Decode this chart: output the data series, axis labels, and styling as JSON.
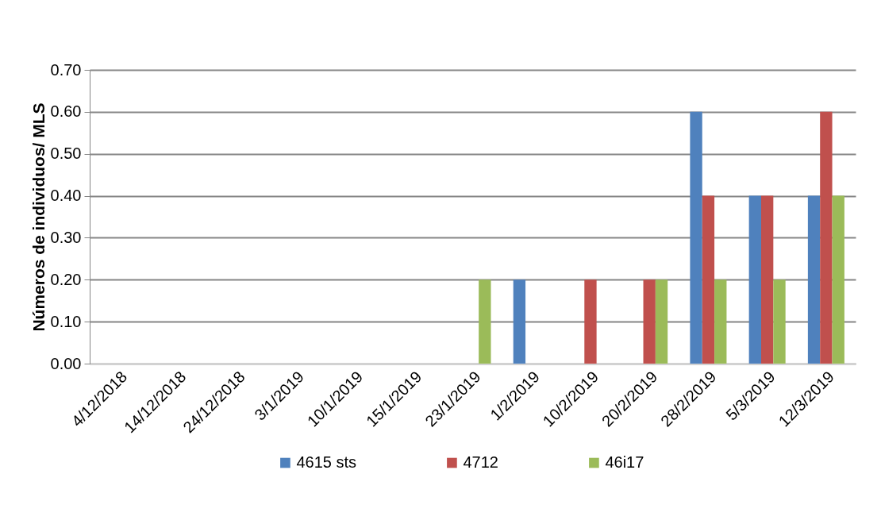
{
  "chart_data": {
    "type": "bar",
    "ylabel": "Números de individuos/ MLS",
    "categories": [
      "4/12/2018",
      "14/12/2018",
      "24/12/2018",
      "3/1/2019",
      "10/1/2019",
      "15/1/2019",
      "23/1/2019",
      "1/2/2019",
      "10/2/2019",
      "20/2/2019",
      "28/2/2019",
      "5/3/2019",
      "12/3/2019"
    ],
    "series": [
      {
        "name": "4615 sts",
        "color": "#4f81bd",
        "values": [
          0,
          0,
          0,
          0,
          0,
          0,
          0,
          0.2,
          0,
          0,
          0.6,
          0.4,
          0.4
        ]
      },
      {
        "name": "4712",
        "color": "#c0504d",
        "values": [
          0,
          0,
          0,
          0,
          0,
          0,
          0,
          0,
          0.2,
          0.2,
          0.4,
          0.4,
          0.6
        ]
      },
      {
        "name": "46i17",
        "color": "#9bbb59",
        "values": [
          0,
          0,
          0,
          0,
          0,
          0,
          0.2,
          0,
          0,
          0.2,
          0.2,
          0.2,
          0.4
        ]
      }
    ],
    "ylim": [
      0,
      0.7
    ],
    "yticks": [
      {
        "value": 0,
        "label": "0.00"
      },
      {
        "value": 0.1,
        "label": "0.10"
      },
      {
        "value": 0.2,
        "label": "0.20"
      },
      {
        "value": 0.3,
        "label": "0.30"
      },
      {
        "value": 0.4,
        "label": "0.40"
      },
      {
        "value": 0.5,
        "label": "0.50"
      },
      {
        "value": 0.6,
        "label": "0.60"
      },
      {
        "value": 0.7,
        "label": "0.70"
      }
    ],
    "grid": "y",
    "legend": "bottom"
  }
}
